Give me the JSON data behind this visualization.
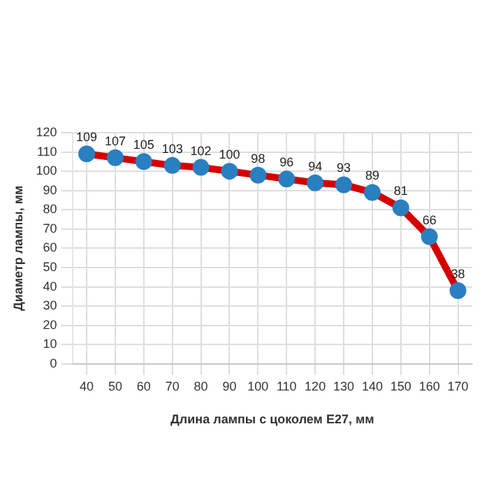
{
  "chart_data": {
    "type": "line",
    "xlabel": "Длина лампы с цоколем E27, мм",
    "ylabel": "Диаметр лампы, мм",
    "categories": [
      "40",
      "50",
      "60",
      "70",
      "80",
      "90",
      "100",
      "110",
      "120",
      "130",
      "140",
      "150",
      "160",
      "170"
    ],
    "series": [
      {
        "color": "#d40000",
        "values": [
          109,
          107,
          105,
          103,
          102,
          100,
          98,
          96,
          94,
          93,
          89,
          81,
          66,
          38
        ]
      }
    ],
    "ylim": [
      0,
      120
    ],
    "yticks": [
      0,
      10,
      20,
      30,
      40,
      50,
      60,
      70,
      80,
      90,
      100,
      110,
      120
    ],
    "grid": true,
    "legend": false,
    "marker": "circle",
    "line_style": "solid",
    "data_labels": true
  }
}
